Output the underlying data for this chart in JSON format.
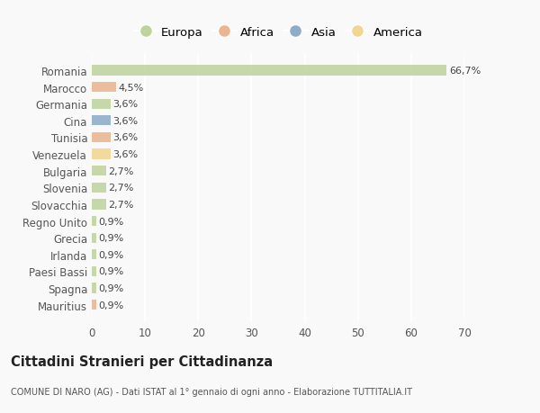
{
  "countries": [
    "Romania",
    "Marocco",
    "Germania",
    "Cina",
    "Tunisia",
    "Venezuela",
    "Bulgaria",
    "Slovenia",
    "Slovacchia",
    "Regno Unito",
    "Grecia",
    "Irlanda",
    "Paesi Bassi",
    "Spagna",
    "Mauritius"
  ],
  "values": [
    66.7,
    4.5,
    3.6,
    3.6,
    3.6,
    3.6,
    2.7,
    2.7,
    2.7,
    0.9,
    0.9,
    0.9,
    0.9,
    0.9,
    0.9
  ],
  "labels": [
    "66,7%",
    "4,5%",
    "3,6%",
    "3,6%",
    "3,6%",
    "3,6%",
    "2,7%",
    "2,7%",
    "2,7%",
    "0,9%",
    "0,9%",
    "0,9%",
    "0,9%",
    "0,9%",
    "0,9%"
  ],
  "continents": [
    "Europa",
    "Africa",
    "Europa",
    "Asia",
    "Africa",
    "America",
    "Europa",
    "Europa",
    "Europa",
    "Europa",
    "Europa",
    "Europa",
    "Europa",
    "Europa",
    "Africa"
  ],
  "colors": {
    "Europa": "#b5cc8e",
    "Africa": "#e8a97e",
    "Asia": "#7b9ec0",
    "America": "#f0d080"
  },
  "title": "Cittadini Stranieri per Cittadinanza",
  "subtitle": "COMUNE DI NARO (AG) - Dati ISTAT al 1° gennaio di ogni anno - Elaborazione TUTTITALIA.IT",
  "xlim": [
    0,
    70
  ],
  "xticks": [
    0,
    10,
    20,
    30,
    40,
    50,
    60,
    70
  ],
  "background_color": "#f9f9f9",
  "grid_color": "#e8e8e8",
  "bar_alpha": 0.75
}
